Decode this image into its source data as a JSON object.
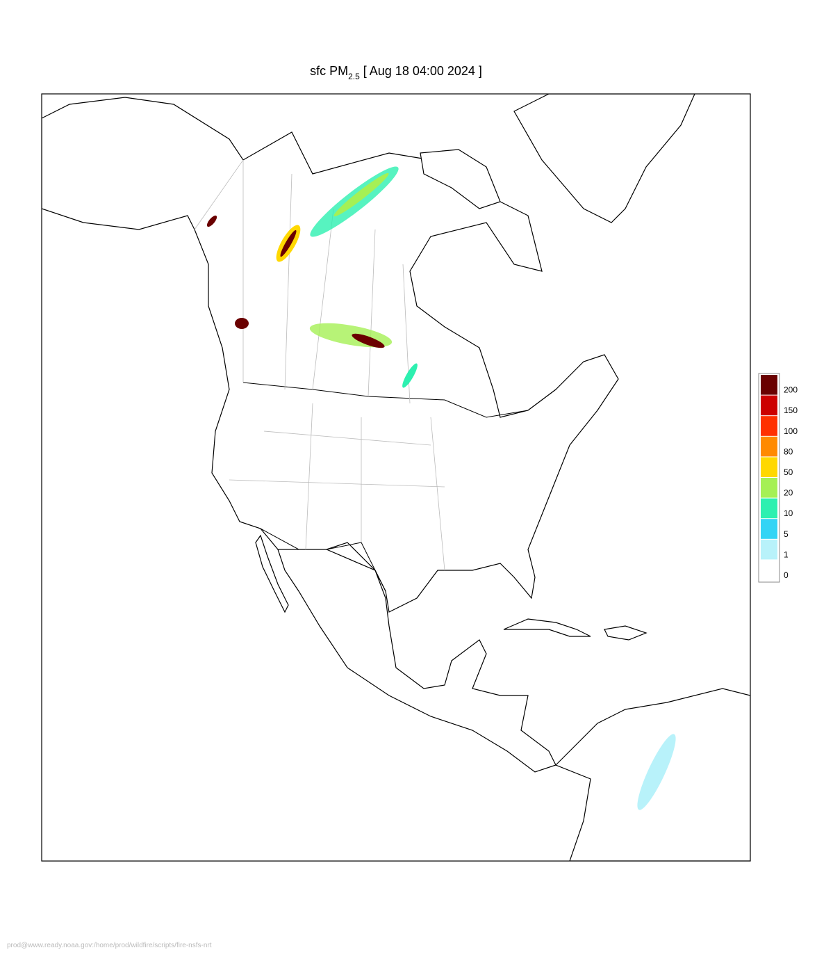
{
  "title": {
    "prefix": "sfc PM",
    "subscript": "2.5",
    "suffix": "[ Aug 18 04:00 2024 ]"
  },
  "legend": {
    "levels": [
      0,
      1,
      5,
      10,
      20,
      50,
      80,
      100,
      150,
      200
    ],
    "colors": [
      "#ffffff",
      "#b8f2fa",
      "#33d4f5",
      "#2df0b0",
      "#a5f055",
      "#ffd800",
      "#ff8a00",
      "#ff3000",
      "#cc0000",
      "#6a0000"
    ]
  },
  "footer": "prod@www.ready.noaa.gov:/home/prod/wildfire/scripts/fire-nsfs-nrt"
}
